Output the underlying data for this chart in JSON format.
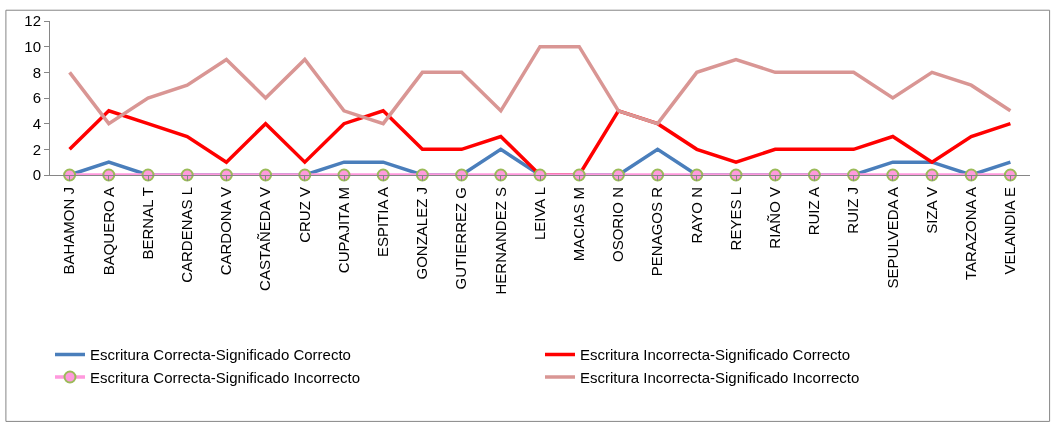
{
  "chart_data": {
    "type": "line",
    "categories": [
      "BAHAMON J",
      "BAQUERO A",
      "BERNAL T",
      "CARDENAS L",
      "CARDONA V",
      "CASTAÑEDA V",
      "CRUZ V",
      "CUPAJITA M",
      "ESPITIA A",
      "GONZALEZ J",
      "GUTIERREZ G",
      "HERNANDEZ S",
      "LEIVA L",
      "MACIAS M",
      "OSORIO N",
      "PENAGOS R",
      "RAYO N",
      "REYES L",
      "RIAÑO V",
      "RUIZ A",
      "RUIZ J",
      "SEPULVEDA A",
      "SIZA V",
      "TARAZONA A",
      "VELANDIA E"
    ],
    "series": [
      {
        "name": "Escritura Correcta-Significado Correcto",
        "color": "#4a7ebb",
        "marker": "none",
        "values": [
          0,
          1,
          0,
          0,
          0,
          0,
          0,
          1,
          1,
          0,
          0,
          2,
          0,
          0,
          0,
          2,
          0,
          0,
          0,
          0,
          0,
          1,
          1,
          0,
          1
        ]
      },
      {
        "name": "Escritura Incorrecta-Significado Correcto",
        "color": "#ff0000",
        "marker": "none",
        "values": [
          2,
          5,
          4,
          3,
          1,
          4,
          1,
          4,
          5,
          2,
          2,
          3,
          0,
          0,
          5,
          4,
          2,
          1,
          2,
          2,
          2,
          3,
          1,
          3,
          4
        ]
      },
      {
        "name": "Escritura Correcta-Significado Incorrecto",
        "color": "#ff99dd",
        "marker": "circle",
        "values": [
          0,
          0,
          0,
          0,
          0,
          0,
          0,
          0,
          0,
          0,
          0,
          0,
          0,
          0,
          0,
          0,
          0,
          0,
          0,
          0,
          0,
          0,
          0,
          0,
          0
        ]
      },
      {
        "name": "Escritura Incorrecta-Significado Incorrecto",
        "color": "#d99694",
        "marker": "none",
        "values": [
          8,
          4,
          6,
          7,
          9,
          6,
          9,
          5,
          4,
          8,
          8,
          5,
          10,
          10,
          5,
          4,
          8,
          9,
          8,
          8,
          8,
          6,
          8,
          7,
          5
        ]
      }
    ],
    "ylim": [
      0,
      12
    ],
    "yticks": [
      0,
      2,
      4,
      6,
      8,
      10,
      12
    ],
    "legend": "bottom"
  }
}
